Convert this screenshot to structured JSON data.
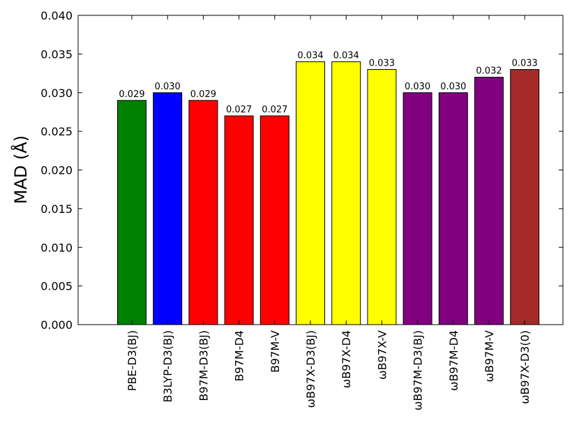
{
  "chart_data": {
    "type": "bar",
    "title": "",
    "xlabel": "",
    "ylabel": "MAD (Å)",
    "ylim": [
      0,
      0.04
    ],
    "yticks": [
      "0.000",
      "0.005",
      "0.010",
      "0.015",
      "0.020",
      "0.025",
      "0.030",
      "0.035",
      "0.040"
    ],
    "grid": false,
    "legend": "none",
    "categories": [
      "PBE-D3(BJ)",
      "B3LYP-D3(BJ)",
      "B97M-D3(BJ)",
      "B97M-D4",
      "B97M-V",
      "ωB97X-D3(BJ)",
      "ωB97X-D4",
      "ωB97X-V",
      "ωB97M-D3(BJ)",
      "ωB97M-D4",
      "ωB97M-V",
      "ωB97X-D3(0)"
    ],
    "values": [
      0.029,
      0.03,
      0.029,
      0.027,
      0.027,
      0.034,
      0.034,
      0.033,
      0.03,
      0.03,
      0.032,
      0.033
    ],
    "value_labels": [
      "0.029",
      "0.030",
      "0.029",
      "0.027",
      "0.027",
      "0.034",
      "0.034",
      "0.033",
      "0.030",
      "0.030",
      "0.032",
      "0.033"
    ],
    "colors": [
      "#008000",
      "#0000ff",
      "#ff0000",
      "#ff0000",
      "#ff0000",
      "#ffff00",
      "#ffff00",
      "#ffff00",
      "#800080",
      "#800080",
      "#800080",
      "#a52a2a"
    ]
  }
}
